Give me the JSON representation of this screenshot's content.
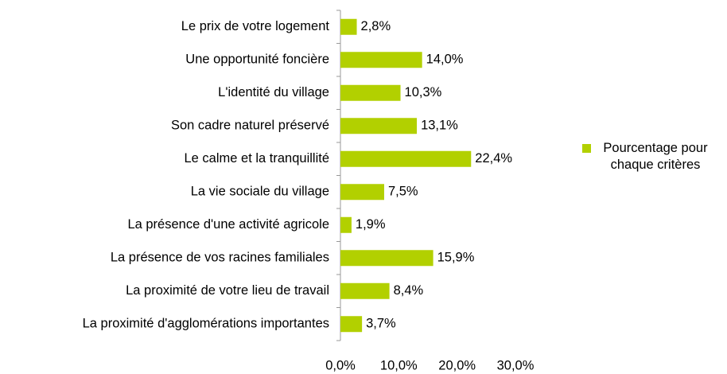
{
  "chart_data": {
    "type": "barh",
    "categories": [
      "Le prix de votre logement",
      "Une opportunité foncière",
      "L'identité du village",
      "Son cadre naturel préservé",
      "Le calme et la tranquillité",
      "La vie sociale du village",
      "La présence d'une activité agricole",
      "La présence de vos racines familiales",
      "La proximité de votre lieu de travail",
      "La proximité d'agglomérations importantes"
    ],
    "series": [
      {
        "name": "Pourcentage pour chaque critères",
        "color": "#b2d000",
        "values": [
          2.8,
          14.0,
          10.3,
          13.1,
          22.4,
          7.5,
          1.9,
          15.9,
          8.4,
          3.7
        ],
        "value_labels": [
          "2,8%",
          "14,0%",
          "10,3%",
          "13,1%",
          "22,4%",
          "7,5%",
          "1,9%",
          "15,9%",
          "8,4%",
          "3,7%"
        ]
      }
    ],
    "xlim": [
      0,
      30
    ],
    "xticks": [
      {
        "value": 0,
        "label": "0,0%"
      },
      {
        "value": 10,
        "label": "10,0%"
      },
      {
        "value": 20,
        "label": "20,0%"
      },
      {
        "value": 30,
        "label": "30,0%"
      }
    ],
    "grid": false,
    "legend": "right"
  }
}
